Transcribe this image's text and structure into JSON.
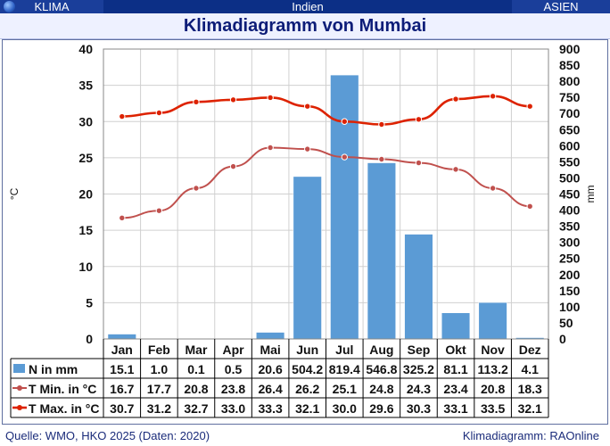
{
  "header": {
    "left": "KLIMA",
    "center": "Indien",
    "right": "ASIEN"
  },
  "colors": {
    "bar": "#5b9bd5",
    "tmin": "#c0504d",
    "tmax": "#dd2200",
    "header_bg": "#1a3e9a"
  },
  "chart_data": {
    "type": "bar",
    "title": "Klimadiagramm von Mumbai",
    "categories": [
      "Jan",
      "Feb",
      "Mar",
      "Apr",
      "Mai",
      "Jun",
      "Jul",
      "Aug",
      "Sep",
      "Okt",
      "Nov",
      "Dez"
    ],
    "y_left": {
      "label": "°C",
      "range": [
        0,
        40
      ],
      "ticks": [
        0,
        5,
        10,
        15,
        20,
        25,
        30,
        35,
        40
      ]
    },
    "y_right": {
      "label": "mm",
      "range": [
        0,
        900
      ],
      "ticks": [
        0,
        50,
        100,
        150,
        200,
        250,
        300,
        350,
        400,
        450,
        500,
        550,
        600,
        650,
        700,
        750,
        800,
        850,
        900
      ]
    },
    "grid": true,
    "legend": "table below chart",
    "series": [
      {
        "name": "N in mm",
        "type": "bar",
        "axis": "right",
        "values": [
          15.1,
          1.0,
          0.1,
          0.5,
          20.6,
          504.2,
          819.4,
          546.8,
          325.2,
          81.1,
          113.2,
          4.1
        ],
        "labels": [
          "15.1",
          "1.0",
          "0.1",
          "0.5",
          "20.6",
          "504.2",
          "819.4",
          "546.8",
          "325.2",
          "81.1",
          "113.2",
          "4.1"
        ]
      },
      {
        "name": "T Min. in °C",
        "type": "line",
        "axis": "left",
        "values": [
          16.7,
          17.7,
          20.8,
          23.8,
          26.4,
          26.2,
          25.1,
          24.8,
          24.3,
          23.4,
          20.8,
          18.3
        ],
        "labels": [
          "16.7",
          "17.7",
          "20.8",
          "23.8",
          "26.4",
          "26.2",
          "25.1",
          "24.8",
          "24.3",
          "23.4",
          "20.8",
          "18.3"
        ]
      },
      {
        "name": "T Max. in °C",
        "type": "line",
        "axis": "left",
        "values": [
          30.7,
          31.2,
          32.7,
          33.0,
          33.3,
          32.1,
          30.0,
          29.6,
          30.3,
          33.1,
          33.5,
          32.1
        ],
        "labels": [
          "30.7",
          "31.2",
          "32.7",
          "33.0",
          "33.3",
          "32.1",
          "30.0",
          "29.6",
          "30.3",
          "33.1",
          "33.5",
          "32.1"
        ]
      }
    ]
  },
  "footer": {
    "source": "Quelle: WMO, HKO 2025 (Daten: 2020)",
    "credit": "Klimadiagramm: RAOnline"
  }
}
